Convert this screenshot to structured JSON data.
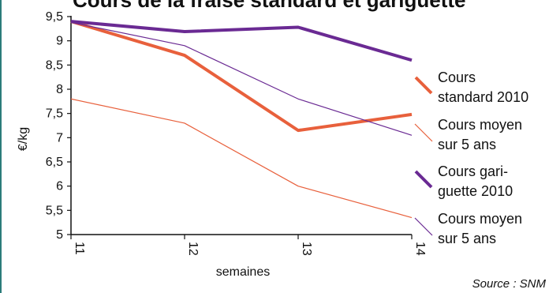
{
  "chart_data": {
    "type": "line",
    "title": "Cours de la fraise standard et gariguette",
    "xlabel": "semaines",
    "ylabel": "€/kg",
    "categories": [
      "11",
      "12",
      "13",
      "14"
    ],
    "ylim": [
      5,
      9.5
    ],
    "yticks": [
      "5",
      "5,5",
      "6",
      "6,5",
      "7",
      "7,5",
      "8",
      "8,5",
      "9",
      "9,5"
    ],
    "grid": false,
    "legend_position": "right",
    "series": [
      {
        "name": "Cours standard 2010",
        "legend_lines": [
          "Cours",
          "standard 2010"
        ],
        "color": "#e8603c",
        "width": "thick",
        "values": [
          9.4,
          8.7,
          7.15,
          7.48
        ]
      },
      {
        "name": "Cours moyen sur 5 ans",
        "legend_lines": [
          "Cours moyen",
          "sur 5 ans"
        ],
        "color": "#e8603c",
        "width": "thin",
        "values": [
          7.8,
          7.3,
          6.0,
          5.35
        ]
      },
      {
        "name": "Cours gariguette 2010",
        "legend_lines": [
          "Cours gari-",
          "guette 2010"
        ],
        "color": "#6a2a93",
        "width": "thick",
        "values": [
          9.4,
          9.19,
          9.28,
          8.6
        ]
      },
      {
        "name": "Cours moyen sur 5 ans",
        "legend_lines": [
          "Cours moyen",
          "sur 5 ans"
        ],
        "color": "#6a2a93",
        "width": "thin",
        "values": [
          9.38,
          8.9,
          7.8,
          7.05
        ]
      }
    ],
    "source": "Source : SNM"
  }
}
